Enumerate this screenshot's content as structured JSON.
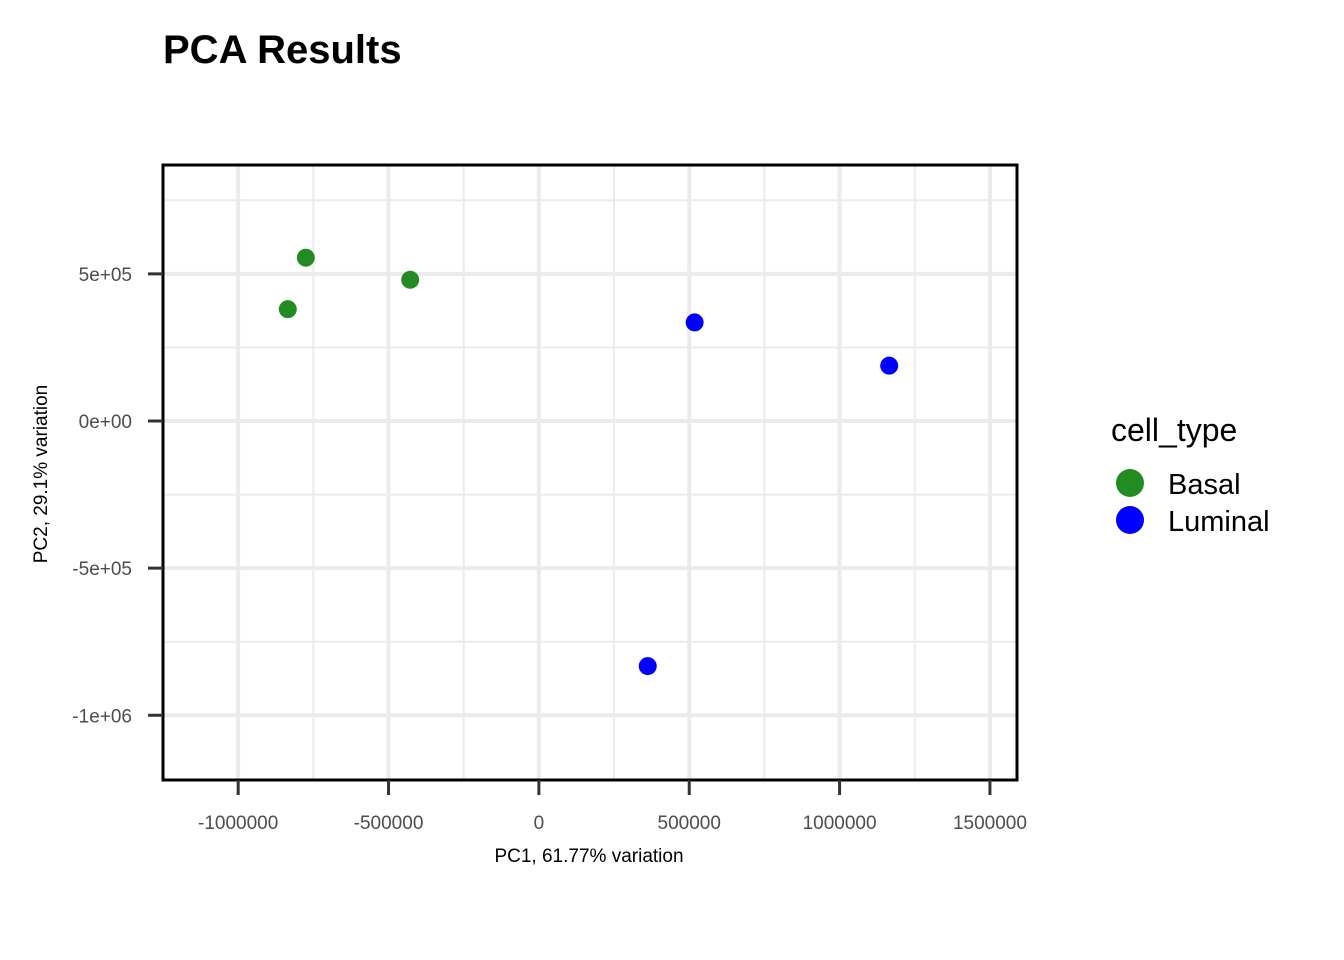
{
  "chart_data": {
    "type": "scatter",
    "title": "PCA Results",
    "xlabel": "PC1, 61.77% variation",
    "ylabel": "PC2, 29.1% variation",
    "xlim": [
      -1250000,
      1590000
    ],
    "ylim": [
      -1220000,
      870000
    ],
    "grid": true,
    "x_ticks": [
      {
        "value": -1000000,
        "label": "-1000000"
      },
      {
        "value": -500000,
        "label": "-500000"
      },
      {
        "value": 0,
        "label": "0"
      },
      {
        "value": 500000,
        "label": "500000"
      },
      {
        "value": 1000000,
        "label": "1000000"
      },
      {
        "value": 1500000,
        "label": "1500000"
      }
    ],
    "y_ticks": [
      {
        "value": 500000,
        "label": "5e+05"
      },
      {
        "value": 0,
        "label": "0e+00"
      },
      {
        "value": -500000,
        "label": "-5e+05"
      },
      {
        "value": -1000000,
        "label": "-1e+06"
      }
    ],
    "legend": {
      "title": "cell_type",
      "position": "right",
      "entries": [
        {
          "name": "Basal",
          "color": "#228B22"
        },
        {
          "name": "Luminal",
          "color": "#0000FF"
        }
      ]
    },
    "series": [
      {
        "name": "Basal",
        "color": "#228B22",
        "points": [
          [
            -835000,
            380000
          ],
          [
            -428000,
            480000
          ],
          [
            -775000,
            555000
          ]
        ]
      },
      {
        "name": "Luminal",
        "color": "#0000FF",
        "points": [
          [
            518000,
            335000
          ],
          [
            1165000,
            188000
          ],
          [
            362000,
            -833000
          ]
        ]
      }
    ]
  }
}
